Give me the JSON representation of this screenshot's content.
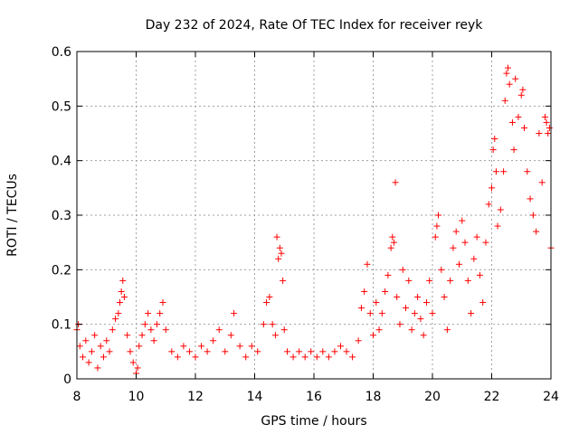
{
  "chart_data": {
    "type": "scatter",
    "title": "Day 232 of 2024, Rate Of TEC Index for receiver reyk",
    "xlabel": "GPS time / hours",
    "ylabel": "ROTI / TECUs",
    "xlim": [
      8,
      24
    ],
    "ylim": [
      0,
      0.6
    ],
    "xticks": [
      8,
      10,
      12,
      14,
      16,
      18,
      20,
      22,
      24
    ],
    "yticks": [
      0,
      0.1,
      0.2,
      0.3,
      0.4,
      0.5,
      0.6
    ],
    "ytick_labels": [
      "0",
      "0.1",
      "0.2",
      "0.3",
      "0.4",
      "0.5",
      "0.6"
    ],
    "grid": true,
    "marker": "+",
    "color": "#ff0000",
    "series": [
      {
        "name": "ROTI",
        "points": [
          [
            8.0,
            0.09
          ],
          [
            8.05,
            0.1
          ],
          [
            8.1,
            0.06
          ],
          [
            8.2,
            0.04
          ],
          [
            8.3,
            0.07
          ],
          [
            8.4,
            0.03
          ],
          [
            8.5,
            0.05
          ],
          [
            8.6,
            0.08
          ],
          [
            8.7,
            0.02
          ],
          [
            8.8,
            0.06
          ],
          [
            8.9,
            0.04
          ],
          [
            9.0,
            0.07
          ],
          [
            9.1,
            0.05
          ],
          [
            9.2,
            0.09
          ],
          [
            9.3,
            0.11
          ],
          [
            9.4,
            0.12
          ],
          [
            9.45,
            0.14
          ],
          [
            9.5,
            0.16
          ],
          [
            9.55,
            0.18
          ],
          [
            9.6,
            0.15
          ],
          [
            9.7,
            0.08
          ],
          [
            9.8,
            0.05
          ],
          [
            9.9,
            0.03
          ],
          [
            10.0,
            0.01
          ],
          [
            10.05,
            0.02
          ],
          [
            10.1,
            0.06
          ],
          [
            10.2,
            0.08
          ],
          [
            10.3,
            0.1
          ],
          [
            10.4,
            0.12
          ],
          [
            10.5,
            0.09
          ],
          [
            10.6,
            0.07
          ],
          [
            10.7,
            0.1
          ],
          [
            10.8,
            0.12
          ],
          [
            10.9,
            0.14
          ],
          [
            11.0,
            0.09
          ],
          [
            11.2,
            0.05
          ],
          [
            11.4,
            0.04
          ],
          [
            11.6,
            0.06
          ],
          [
            11.8,
            0.05
          ],
          [
            12.0,
            0.04
          ],
          [
            12.2,
            0.06
          ],
          [
            12.4,
            0.05
          ],
          [
            12.6,
            0.07
          ],
          [
            12.8,
            0.09
          ],
          [
            13.0,
            0.05
          ],
          [
            13.2,
            0.08
          ],
          [
            13.3,
            0.12
          ],
          [
            13.5,
            0.06
          ],
          [
            13.7,
            0.04
          ],
          [
            13.9,
            0.06
          ],
          [
            14.1,
            0.05
          ],
          [
            14.3,
            0.1
          ],
          [
            14.4,
            0.14
          ],
          [
            14.5,
            0.15
          ],
          [
            14.6,
            0.1
          ],
          [
            14.7,
            0.08
          ],
          [
            14.75,
            0.26
          ],
          [
            14.8,
            0.22
          ],
          [
            14.85,
            0.24
          ],
          [
            14.9,
            0.23
          ],
          [
            14.95,
            0.18
          ],
          [
            15.0,
            0.09
          ],
          [
            15.1,
            0.05
          ],
          [
            15.3,
            0.04
          ],
          [
            15.5,
            0.05
          ],
          [
            15.7,
            0.04
          ],
          [
            15.9,
            0.05
          ],
          [
            16.1,
            0.04
          ],
          [
            16.3,
            0.05
          ],
          [
            16.5,
            0.04
          ],
          [
            16.7,
            0.05
          ],
          [
            16.9,
            0.06
          ],
          [
            17.1,
            0.05
          ],
          [
            17.3,
            0.04
          ],
          [
            17.5,
            0.07
          ],
          [
            17.6,
            0.13
          ],
          [
            17.7,
            0.16
          ],
          [
            17.8,
            0.21
          ],
          [
            17.9,
            0.12
          ],
          [
            18.0,
            0.08
          ],
          [
            18.1,
            0.14
          ],
          [
            18.2,
            0.09
          ],
          [
            18.3,
            0.12
          ],
          [
            18.4,
            0.16
          ],
          [
            18.5,
            0.19
          ],
          [
            18.6,
            0.24
          ],
          [
            18.65,
            0.26
          ],
          [
            18.7,
            0.25
          ],
          [
            18.75,
            0.36
          ],
          [
            18.8,
            0.15
          ],
          [
            18.9,
            0.1
          ],
          [
            19.0,
            0.2
          ],
          [
            19.1,
            0.13
          ],
          [
            19.2,
            0.18
          ],
          [
            19.3,
            0.09
          ],
          [
            19.4,
            0.12
          ],
          [
            19.5,
            0.15
          ],
          [
            19.6,
            0.11
          ],
          [
            19.7,
            0.08
          ],
          [
            19.8,
            0.14
          ],
          [
            19.9,
            0.18
          ],
          [
            20.0,
            0.12
          ],
          [
            20.1,
            0.26
          ],
          [
            20.15,
            0.28
          ],
          [
            20.2,
            0.3
          ],
          [
            20.3,
            0.2
          ],
          [
            20.4,
            0.15
          ],
          [
            20.5,
            0.09
          ],
          [
            20.6,
            0.18
          ],
          [
            20.7,
            0.24
          ],
          [
            20.8,
            0.27
          ],
          [
            20.9,
            0.21
          ],
          [
            21.0,
            0.29
          ],
          [
            21.1,
            0.25
          ],
          [
            21.2,
            0.18
          ],
          [
            21.3,
            0.12
          ],
          [
            21.4,
            0.22
          ],
          [
            21.5,
            0.26
          ],
          [
            21.6,
            0.19
          ],
          [
            21.7,
            0.14
          ],
          [
            21.8,
            0.25
          ],
          [
            21.9,
            0.32
          ],
          [
            22.0,
            0.35
          ],
          [
            22.05,
            0.42
          ],
          [
            22.1,
            0.44
          ],
          [
            22.15,
            0.38
          ],
          [
            22.2,
            0.28
          ],
          [
            22.3,
            0.31
          ],
          [
            22.4,
            0.38
          ],
          [
            22.45,
            0.51
          ],
          [
            22.5,
            0.56
          ],
          [
            22.55,
            0.57
          ],
          [
            22.6,
            0.54
          ],
          [
            22.7,
            0.47
          ],
          [
            22.75,
            0.42
          ],
          [
            22.8,
            0.55
          ],
          [
            22.9,
            0.48
          ],
          [
            23.0,
            0.52
          ],
          [
            23.05,
            0.53
          ],
          [
            23.1,
            0.46
          ],
          [
            23.2,
            0.38
          ],
          [
            23.3,
            0.33
          ],
          [
            23.4,
            0.3
          ],
          [
            23.5,
            0.27
          ],
          [
            23.6,
            0.45
          ],
          [
            23.7,
            0.36
          ],
          [
            23.8,
            0.48
          ],
          [
            23.85,
            0.47
          ],
          [
            23.9,
            0.45
          ],
          [
            23.95,
            0.46
          ],
          [
            24.0,
            0.24
          ]
        ]
      }
    ]
  }
}
